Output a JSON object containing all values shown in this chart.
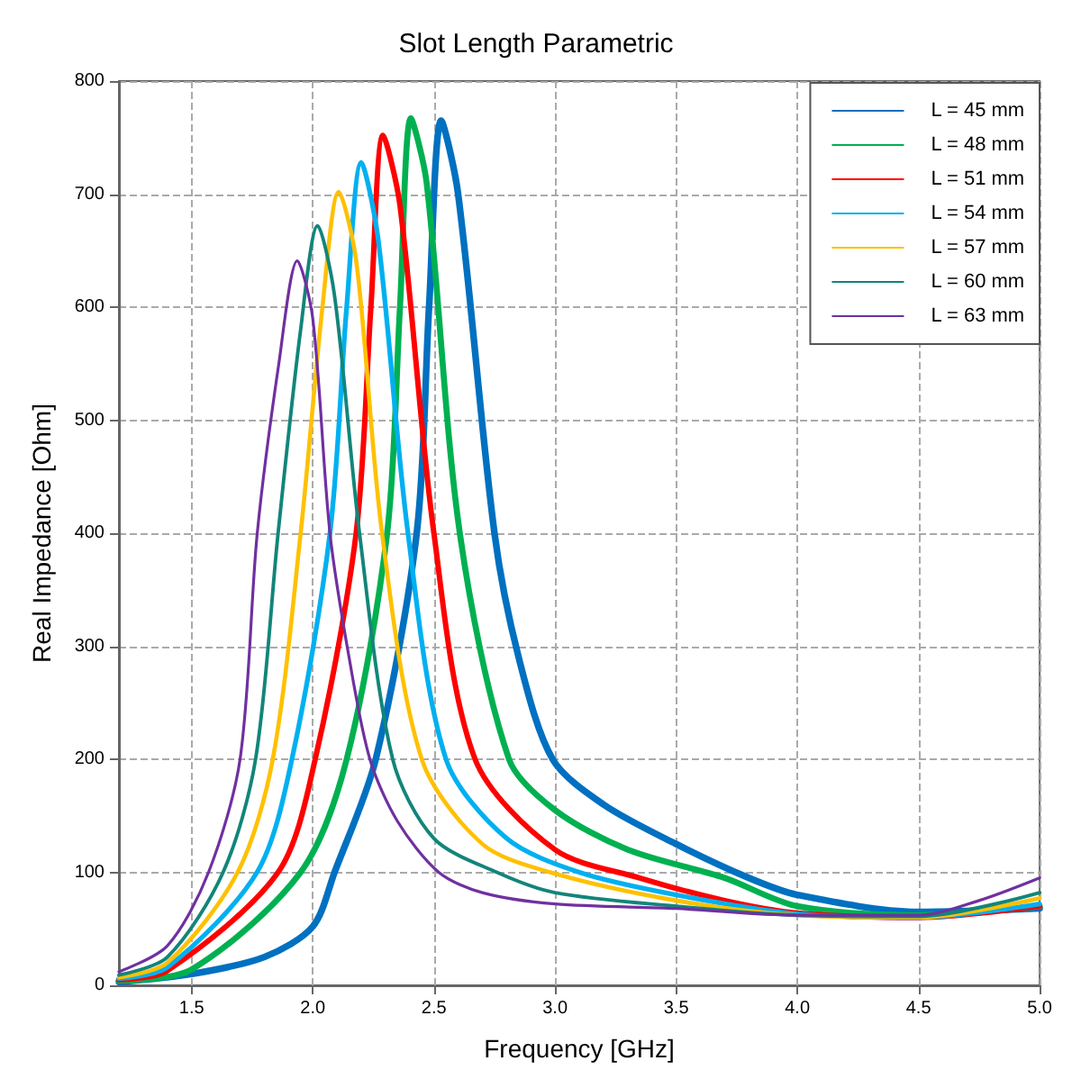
{
  "chart_data": {
    "type": "line",
    "title": "Slot Length Parametric",
    "xlabel": "Frequency [GHz]",
    "ylabel": "Real Impedance [Ohm]",
    "xlim": [
      1.2,
      5.0
    ],
    "xticks": [
      {
        "value": 1.5,
        "label": "1.5"
      },
      {
        "value": 2,
        "label": "2.0"
      },
      {
        "value": 2.5,
        "label": "2.5"
      },
      {
        "value": 3,
        "label": "3.0"
      },
      {
        "value": 3.5,
        "label": "3.5"
      },
      {
        "value": 4,
        "label": "4.0"
      },
      {
        "value": 4.5,
        "label": "4.5"
      },
      {
        "value": 5,
        "label": "5.0"
      }
    ],
    "ylim": [
      0,
      800
    ],
    "yticks": [
      0,
      100,
      200,
      300,
      400,
      500,
      600,
      700,
      800
    ],
    "grid": true,
    "legend": "top right",
    "marker": "none",
    "line_style": "solid",
    "series": [
      {
        "name": "L = 45 mm",
        "color": "#0070c0",
        "x": [
          1.2,
          1.5,
          1.8,
          2.0,
          2.09,
          2.26,
          2.429,
          2.48,
          2.53,
          2.6,
          2.75,
          2.85,
          2.99,
          3.2,
          3.5,
          3.8,
          4.0,
          4.5,
          5.0
        ],
        "values": [
          3,
          10,
          25,
          52,
          100,
          200,
          400,
          600,
          765,
          700,
          400,
          290,
          200,
          160,
          125,
          95,
          80,
          65,
          68
        ]
      },
      {
        "name": "L = 48 mm",
        "color": "#00b050",
        "x": [
          1.2,
          1.5,
          1.95,
          2.14,
          2.307,
          2.36,
          2.405,
          2.47,
          2.607,
          2.81,
          3.0,
          3.3,
          3.7,
          4.0,
          4.5,
          5.0
        ],
        "values": [
          4,
          14,
          100,
          200,
          400,
          600,
          767,
          710,
          400,
          200,
          155,
          120,
          95,
          70,
          62,
          70
        ]
      },
      {
        "name": "L = 51 mm",
        "color": "#ff0000",
        "x": [
          1.2,
          1.4,
          1.857,
          2.01,
          2.179,
          2.24,
          2.29,
          2.36,
          2.5,
          2.67,
          3.0,
          3.35,
          3.7,
          4.0,
          4.5,
          5.0
        ],
        "values": [
          5,
          13,
          100,
          200,
          400,
          600,
          752,
          690,
          400,
          200,
          120,
          95,
          75,
          64,
          60,
          70
        ]
      },
      {
        "name": "L = 54 mm",
        "color": "#00b0f0",
        "x": [
          1.2,
          1.4,
          1.77,
          1.914,
          2.071,
          2.14,
          2.2,
          2.27,
          2.393,
          2.55,
          2.8,
          3.1,
          3.5,
          4.0,
          4.5,
          5.0
        ],
        "values": [
          6,
          16,
          100,
          200,
          400,
          600,
          728,
          660,
          400,
          200,
          130,
          100,
          80,
          63,
          60,
          72
        ]
      },
      {
        "name": "L = 57 mm",
        "color": "#ffc000",
        "x": [
          1.2,
          1.4,
          1.69,
          1.835,
          1.95,
          2.04,
          2.107,
          2.18,
          2.286,
          2.45,
          2.7,
          2.98,
          3.5,
          4.0,
          4.5,
          5.0
        ],
        "values": [
          7,
          20,
          100,
          200,
          400,
          600,
          702,
          640,
          400,
          200,
          125,
          100,
          75,
          62,
          60,
          77
        ]
      },
      {
        "name": "L = 60 mm",
        "color": "#12857a",
        "x": [
          1.2,
          1.4,
          1.63,
          1.764,
          1.857,
          1.95,
          2.02,
          2.09,
          2.193,
          2.33,
          2.5,
          2.76,
          3.0,
          3.5,
          4.0,
          4.5,
          5.0
        ],
        "values": [
          9,
          25,
          100,
          200,
          400,
          580,
          672,
          610,
          400,
          200,
          130,
          100,
          82,
          70,
          62,
          61,
          82
        ]
      },
      {
        "name": "L = 63 mm",
        "color": "#7030a0",
        "x": [
          1.2,
          1.4,
          1.57,
          1.7,
          1.771,
          1.86,
          1.936,
          2.0,
          2.071,
          2.15,
          2.236,
          2.35,
          2.52,
          2.7,
          3.0,
          3.5,
          4.0,
          4.5,
          4.75,
          5.0
        ],
        "values": [
          12,
          35,
          100,
          200,
          400,
          550,
          641,
          590,
          400,
          290,
          200,
          145,
          100,
          82,
          72,
          68,
          62,
          62,
          75,
          95
        ]
      }
    ]
  }
}
